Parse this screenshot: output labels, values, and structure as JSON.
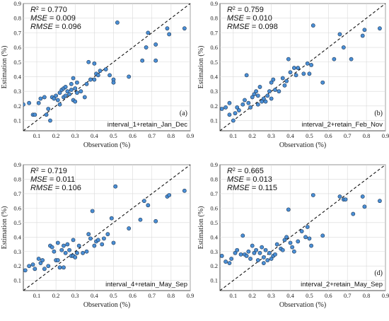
{
  "colors": {
    "point_fill": "#4a8fd6",
    "point_edge": "#1f3550",
    "identity_line": "#111111",
    "grid": "#d9d9d9"
  },
  "chart_data": [
    {
      "type": "scatter",
      "panel_tag": "(a)",
      "caption": "interval_1+retain_Jan_Dec",
      "stats": {
        "r2_label": "R",
        "r2_value": " = 0.770",
        "mse_label": "MSE",
        "mse_value": " = 0.009",
        "rmse_label": "RMSE",
        "rmse_value": " = 0.096"
      },
      "xlabel": "Observation (%)",
      "ylabel": "Estimation (%)",
      "xlim": [
        0.03,
        0.9
      ],
      "ylim": [
        0.03,
        0.9
      ],
      "xticks": [
        "0.1",
        "0.2",
        "0.3",
        "0.4",
        "0.5",
        "0.6",
        "0.7",
        "0.8",
        "0.9"
      ],
      "yticks": [
        "0.1",
        "0.2",
        "0.3",
        "0.4",
        "0.5",
        "0.6",
        "0.7",
        "0.8",
        "0.9"
      ],
      "reference_line": "y = x",
      "points": [
        [
          0.03,
          0.21
        ],
        [
          0.06,
          0.22
        ],
        [
          0.08,
          0.14
        ],
        [
          0.09,
          0.14
        ],
        [
          0.11,
          0.22
        ],
        [
          0.12,
          0.25
        ],
        [
          0.14,
          0.26
        ],
        [
          0.15,
          0.14
        ],
        [
          0.16,
          0.18
        ],
        [
          0.17,
          0.1
        ],
        [
          0.18,
          0.26
        ],
        [
          0.19,
          0.25
        ],
        [
          0.2,
          0.27
        ],
        [
          0.21,
          0.24
        ],
        [
          0.22,
          0.29
        ],
        [
          0.22,
          0.21
        ],
        [
          0.23,
          0.31
        ],
        [
          0.24,
          0.32
        ],
        [
          0.24,
          0.26
        ],
        [
          0.25,
          0.33
        ],
        [
          0.25,
          0.27
        ],
        [
          0.26,
          0.3
        ],
        [
          0.27,
          0.28
        ],
        [
          0.28,
          0.35
        ],
        [
          0.28,
          0.31
        ],
        [
          0.29,
          0.39
        ],
        [
          0.29,
          0.24
        ],
        [
          0.3,
          0.32
        ],
        [
          0.3,
          0.23
        ],
        [
          0.31,
          0.29
        ],
        [
          0.31,
          0.36
        ],
        [
          0.33,
          0.3
        ],
        [
          0.35,
          0.26
        ],
        [
          0.36,
          0.35
        ],
        [
          0.37,
          0.5
        ],
        [
          0.38,
          0.38
        ],
        [
          0.4,
          0.49
        ],
        [
          0.4,
          0.38
        ],
        [
          0.41,
          0.42
        ],
        [
          0.42,
          0.41
        ],
        [
          0.43,
          0.44
        ],
        [
          0.46,
          0.45
        ],
        [
          0.48,
          0.41
        ],
        [
          0.5,
          0.38
        ],
        [
          0.5,
          0.36
        ],
        [
          0.52,
          0.77
        ],
        [
          0.58,
          0.4
        ],
        [
          0.65,
          0.51
        ],
        [
          0.67,
          0.6
        ],
        [
          0.68,
          0.7
        ],
        [
          0.72,
          0.51
        ],
        [
          0.72,
          0.62
        ],
        [
          0.78,
          0.73
        ],
        [
          0.79,
          0.69
        ],
        [
          0.87,
          0.73
        ]
      ]
    },
    {
      "type": "scatter",
      "panel_tag": "(b)",
      "caption": "interval_2+retain_Feb_Nov",
      "stats": {
        "r2_label": "R",
        "r2_value": " = 0.759",
        "mse_label": "MSE",
        "mse_value": " = 0.010",
        "rmse_label": "RMSE",
        "rmse_value": " = 0.098"
      },
      "xlabel": "Observation (%)",
      "ylabel": "Estimation (%)",
      "xlim": [
        0.03,
        0.9
      ],
      "ylim": [
        0.03,
        0.9
      ],
      "xticks": [
        "0.1",
        "0.2",
        "0.3",
        "0.4",
        "0.5",
        "0.6",
        "0.7",
        "0.8",
        "0.9"
      ],
      "yticks": [
        "0.1",
        "0.2",
        "0.3",
        "0.4",
        "0.5",
        "0.6",
        "0.7",
        "0.8",
        "0.9"
      ],
      "reference_line": "y = x",
      "points": [
        [
          0.04,
          0.18
        ],
        [
          0.06,
          0.19
        ],
        [
          0.08,
          0.22
        ],
        [
          0.08,
          0.14
        ],
        [
          0.1,
          0.1
        ],
        [
          0.11,
          0.15
        ],
        [
          0.12,
          0.19
        ],
        [
          0.13,
          0.17
        ],
        [
          0.15,
          0.21
        ],
        [
          0.16,
          0.24
        ],
        [
          0.17,
          0.41
        ],
        [
          0.18,
          0.22
        ],
        [
          0.19,
          0.19
        ],
        [
          0.2,
          0.26
        ],
        [
          0.21,
          0.28
        ],
        [
          0.22,
          0.3
        ],
        [
          0.23,
          0.21
        ],
        [
          0.23,
          0.27
        ],
        [
          0.24,
          0.33
        ],
        [
          0.25,
          0.23
        ],
        [
          0.26,
          0.25
        ],
        [
          0.27,
          0.23
        ],
        [
          0.28,
          0.27
        ],
        [
          0.29,
          0.3
        ],
        [
          0.3,
          0.36
        ],
        [
          0.3,
          0.25
        ],
        [
          0.31,
          0.38
        ],
        [
          0.32,
          0.31
        ],
        [
          0.34,
          0.3
        ],
        [
          0.36,
          0.39
        ],
        [
          0.37,
          0.34
        ],
        [
          0.38,
          0.37
        ],
        [
          0.39,
          0.52
        ],
        [
          0.4,
          0.43
        ],
        [
          0.42,
          0.46
        ],
        [
          0.43,
          0.41
        ],
        [
          0.44,
          0.46
        ],
        [
          0.47,
          0.42
        ],
        [
          0.49,
          0.49
        ],
        [
          0.5,
          0.42
        ],
        [
          0.51,
          0.48
        ],
        [
          0.52,
          0.75
        ],
        [
          0.57,
          0.36
        ],
        [
          0.63,
          0.52
        ],
        [
          0.66,
          0.69
        ],
        [
          0.68,
          0.6
        ],
        [
          0.72,
          0.52
        ],
        [
          0.78,
          0.68
        ],
        [
          0.79,
          0.72
        ],
        [
          0.87,
          0.73
        ]
      ]
    },
    {
      "type": "scatter",
      "panel_tag": "",
      "caption": "interval_4+retain_May_Sep",
      "stats": {
        "r2_label": "R",
        "r2_value": " = 0.719",
        "mse_label": "MSE",
        "mse_value": " = 0.011",
        "rmse_label": "RMSE",
        "rmse_value": " = 0.106"
      },
      "xlabel": "Observation (%)",
      "ylabel": "Estimation (%)",
      "xlim": [
        0.03,
        0.9
      ],
      "ylim": [
        0.03,
        0.9
      ],
      "xticks": [
        "0.1",
        "0.2",
        "0.3",
        "0.4",
        "0.5",
        "0.6",
        "0.7",
        "0.8",
        "0.9"
      ],
      "yticks": [
        "0.1",
        "0.2",
        "0.3",
        "0.4",
        "0.5",
        "0.6",
        "0.7",
        "0.8",
        "0.9"
      ],
      "reference_line": "y = x",
      "points": [
        [
          0.04,
          0.17
        ],
        [
          0.06,
          0.2
        ],
        [
          0.08,
          0.21
        ],
        [
          0.09,
          0.18
        ],
        [
          0.11,
          0.25
        ],
        [
          0.12,
          0.22
        ],
        [
          0.13,
          0.24
        ],
        [
          0.14,
          0.18
        ],
        [
          0.16,
          0.2
        ],
        [
          0.17,
          0.34
        ],
        [
          0.18,
          0.33
        ],
        [
          0.19,
          0.3
        ],
        [
          0.2,
          0.24
        ],
        [
          0.21,
          0.36
        ],
        [
          0.21,
          0.24
        ],
        [
          0.22,
          0.19
        ],
        [
          0.23,
          0.31
        ],
        [
          0.24,
          0.34
        ],
        [
          0.24,
          0.19
        ],
        [
          0.25,
          0.29
        ],
        [
          0.26,
          0.35
        ],
        [
          0.27,
          0.31
        ],
        [
          0.28,
          0.27
        ],
        [
          0.29,
          0.38
        ],
        [
          0.29,
          0.27
        ],
        [
          0.3,
          0.26
        ],
        [
          0.31,
          0.29
        ],
        [
          0.32,
          0.34
        ],
        [
          0.34,
          0.29
        ],
        [
          0.36,
          0.3
        ],
        [
          0.37,
          0.42
        ],
        [
          0.38,
          0.39
        ],
        [
          0.39,
          0.58
        ],
        [
          0.4,
          0.34
        ],
        [
          0.41,
          0.37
        ],
        [
          0.42,
          0.38
        ],
        [
          0.44,
          0.35
        ],
        [
          0.45,
          0.39
        ],
        [
          0.47,
          0.42
        ],
        [
          0.49,
          0.53
        ],
        [
          0.5,
          0.36
        ],
        [
          0.51,
          0.75
        ],
        [
          0.58,
          0.46
        ],
        [
          0.64,
          0.52
        ],
        [
          0.66,
          0.65
        ],
        [
          0.68,
          0.62
        ],
        [
          0.72,
          0.51
        ],
        [
          0.78,
          0.68
        ],
        [
          0.79,
          0.69
        ],
        [
          0.87,
          0.72
        ]
      ]
    },
    {
      "type": "scatter",
      "panel_tag": "(d)",
      "caption": "interval_2+retain_May_Sep",
      "stats": {
        "r2_label": "R",
        "r2_value": " = 0.665",
        "mse_label": "MSE",
        "mse_value": " = 0.013",
        "rmse_label": "RMSE",
        "rmse_value": " = 0.115"
      },
      "xlabel": "Observation (%)",
      "ylabel": "Estimation (%)",
      "xlim": [
        0.03,
        0.9
      ],
      "ylim": [
        0.03,
        0.9
      ],
      "xticks": [
        "0.1",
        "0.2",
        "0.3",
        "0.4",
        "0.5",
        "0.6",
        "0.7",
        "0.8",
        "0.9"
      ],
      "yticks": [
        "0.1",
        "0.2",
        "0.3",
        "0.4",
        "0.5",
        "0.6",
        "0.7",
        "0.8",
        "0.9"
      ],
      "reference_line": "y = x",
      "points": [
        [
          0.04,
          0.27
        ],
        [
          0.06,
          0.23
        ],
        [
          0.08,
          0.22
        ],
        [
          0.09,
          0.25
        ],
        [
          0.11,
          0.29
        ],
        [
          0.12,
          0.31
        ],
        [
          0.14,
          0.28
        ],
        [
          0.15,
          0.41
        ],
        [
          0.16,
          0.28
        ],
        [
          0.17,
          0.27
        ],
        [
          0.18,
          0.3
        ],
        [
          0.19,
          0.25
        ],
        [
          0.2,
          0.34
        ],
        [
          0.21,
          0.29
        ],
        [
          0.22,
          0.31
        ],
        [
          0.23,
          0.24
        ],
        [
          0.24,
          0.29
        ],
        [
          0.25,
          0.33
        ],
        [
          0.26,
          0.26
        ],
        [
          0.26,
          0.22
        ],
        [
          0.27,
          0.31
        ],
        [
          0.28,
          0.24
        ],
        [
          0.29,
          0.29
        ],
        [
          0.3,
          0.25
        ],
        [
          0.31,
          0.27
        ],
        [
          0.32,
          0.28
        ],
        [
          0.33,
          0.35
        ],
        [
          0.35,
          0.32
        ],
        [
          0.36,
          0.31
        ],
        [
          0.37,
          0.38
        ],
        [
          0.38,
          0.4
        ],
        [
          0.39,
          0.59
        ],
        [
          0.4,
          0.36
        ],
        [
          0.41,
          0.33
        ],
        [
          0.42,
          0.3
        ],
        [
          0.44,
          0.37
        ],
        [
          0.46,
          0.44
        ],
        [
          0.48,
          0.4
        ],
        [
          0.49,
          0.47
        ],
        [
          0.5,
          0.39
        ],
        [
          0.51,
          0.34
        ],
        [
          0.52,
          0.69
        ],
        [
          0.57,
          0.41
        ],
        [
          0.66,
          0.68
        ],
        [
          0.68,
          0.66
        ],
        [
          0.69,
          0.66
        ],
        [
          0.73,
          0.56
        ],
        [
          0.78,
          0.68
        ],
        [
          0.79,
          0.61
        ],
        [
          0.87,
          0.65
        ]
      ]
    }
  ]
}
